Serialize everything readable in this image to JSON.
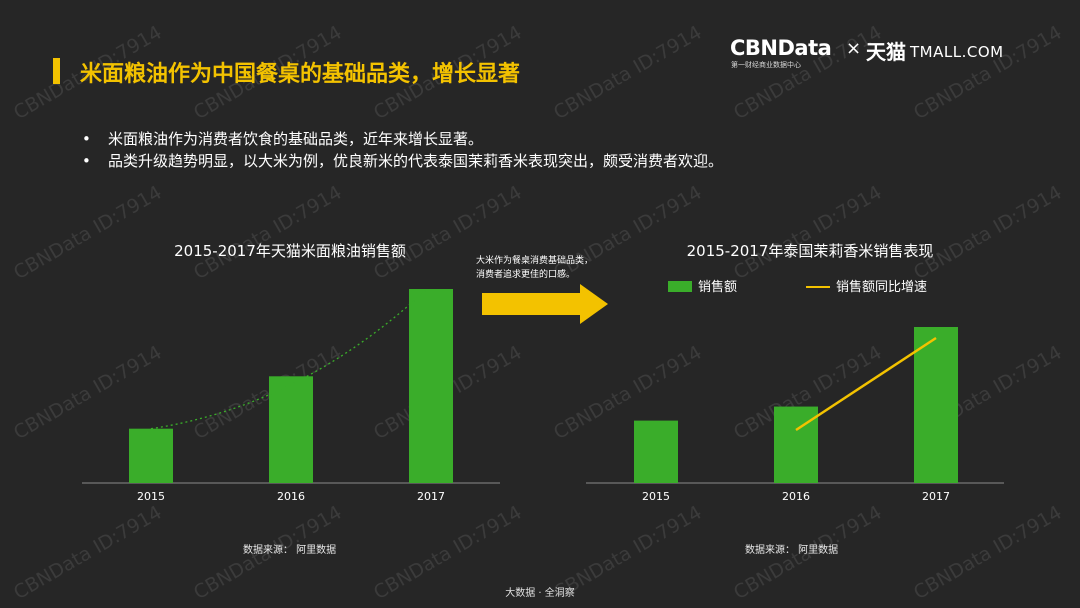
{
  "title": "米面粮油作为中国餐桌的基础品类，增长显著",
  "logo": {
    "brand": "CBNData",
    "tagline": "第一财经商业数据中心",
    "times": "×",
    "partner_cn": "天猫",
    "partner_en": "TMALL.COM"
  },
  "bullets": [
    "米面粮油作为消费者饮食的基础品类，近年来增长显著。",
    "品类升级趋势明显，以大米为例，优良新米的代表泰国茉莉香米表现突出，颇受消费者欢迎。"
  ],
  "arrow_note": {
    "line1": "大米作为餐桌消费基础品类，",
    "line2": "消费者追求更佳的口感。"
  },
  "sources": {
    "left": "数据来源： 阿里数据",
    "right": "数据来源： 阿里数据"
  },
  "footer": "大数据 · 全洞察",
  "watermark": "CBNData ID:7914",
  "colors": {
    "background": "#262626",
    "accent": "#f3c200",
    "bar": "#3aad2a",
    "line": "#f3c200"
  },
  "chart_data": [
    {
      "type": "bar",
      "title": "2015-2017年天猫米面粮油销售额",
      "categories": [
        "2015",
        "2016",
        "2017"
      ],
      "values": [
        0.28,
        0.55,
        1.0
      ],
      "trendline": true,
      "ylim": [
        0,
        1.0
      ],
      "grid": false
    },
    {
      "type": "bar",
      "title": "2015-2017年泰国茉莉香米销售表现",
      "categories": [
        "2015",
        "2016",
        "2017"
      ],
      "series": [
        {
          "name": "销售额",
          "kind": "bar",
          "values": [
            0.4,
            0.49,
            1.0
          ]
        },
        {
          "name": "销售额同比增速",
          "kind": "line",
          "values": [
            null,
            0.2,
            1.0
          ]
        }
      ],
      "legend_position": "top",
      "ylim": [
        0,
        1.0
      ],
      "grid": false
    }
  ]
}
